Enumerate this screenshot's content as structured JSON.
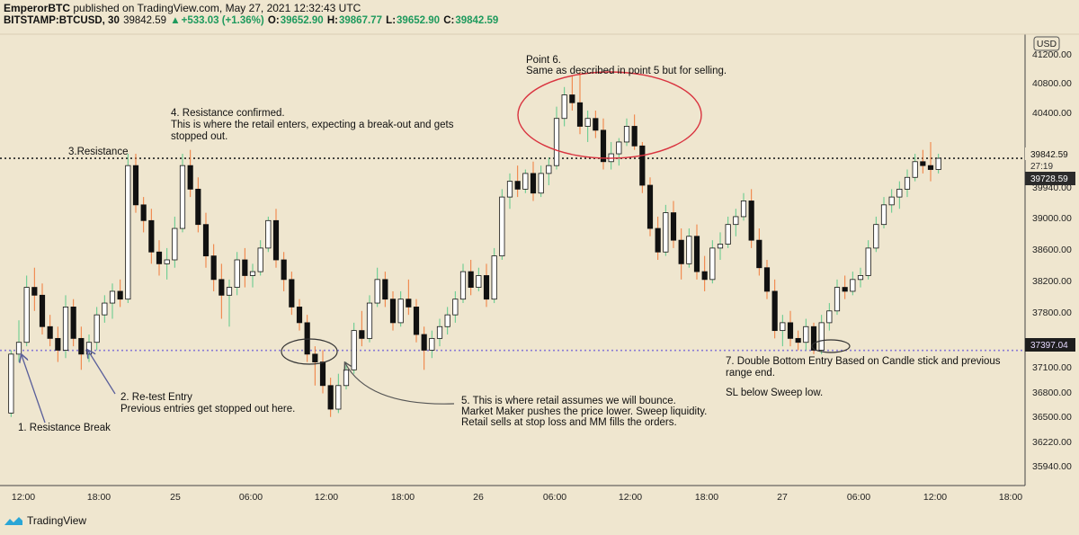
{
  "header": {
    "author": "EmperorBTC",
    "published_text": " published on TradingView.com, May 27, 2021 12:32:43 UTC",
    "symbol": "BITSTAMP:BTCUSD, 30",
    "last": "39842.59",
    "change": "+533.03 (+1.36%)",
    "o_label": "O:",
    "o_value": "39652.90",
    "h_label": "H:",
    "h_value": "39867.77",
    "l_label": "L:",
    "l_value": "39652.90",
    "c_label": "C:",
    "c_value": "39842.59"
  },
  "footer": {
    "brand": "TradingView"
  },
  "price_axis": {
    "currency": "USD",
    "ticks": [
      "41200.00",
      "40800.00",
      "40400.00",
      "39940.00",
      "39000.00",
      "38600.00",
      "38200.00",
      "37800.00",
      "37100.00",
      "36800.00",
      "36500.00",
      "36220.00",
      "35940.00"
    ],
    "last_price_tag": "39842.59",
    "countdown": "27:19",
    "mid_tag": "39728.59",
    "support_tag": "37397.04"
  },
  "time_axis": {
    "ticks": [
      "12:00",
      "18:00",
      "25",
      "06:00",
      "12:00",
      "18:00",
      "26",
      "06:00",
      "12:00",
      "18:00",
      "27",
      "06:00",
      "12:00",
      "18:00"
    ]
  },
  "annotations": {
    "a1": "1. Resistance Break",
    "a2_line1": "2. Re-test Entry",
    "a2_line2": "Previous entries get stopped out here.",
    "a3": "3.Resistance",
    "a4_line1": "4. Resistance confirmed.",
    "a4_line2": "This is where the retail enters, expecting a break-out and gets",
    "a4_line3": "stopped out.",
    "a5_line1": "5. This is where retail assumes we will  bounce.",
    "a5_line2": "Market Maker pushes the price lower. Sweep liquidity.",
    "a5_line3": "Retail sells at stop loss and MM fills the orders.",
    "a6_line1": "Point 6.",
    "a6_line2": "Same as described in  point 5 but for selling.",
    "a7_line1": "7. Double Bottom  Entry Based on Candle stick and previous",
    "a7_line2": "range end.",
    "a7_line3": "SL below Sweep low."
  },
  "colors": {
    "background": "#efe6cf",
    "bull_candle_fill": "#ffffff",
    "bear_candle_fill": "#111111",
    "wick_up": "#5cc98a",
    "wick_down": "#f07a3a",
    "resistance_line": "#222222",
    "support_line": "#8a7bd6",
    "ellipse_red": "#d9333f",
    "ellipse_dark": "#333333",
    "arrow": "#5a5f9a",
    "last_price_tag": "#111111",
    "mid_tag": "#2b2b2b"
  },
  "chart_data": {
    "type": "candlestick",
    "symbol": "BITSTAMP:BTCUSD",
    "interval": "30",
    "ylim": [
      35700,
      41400
    ],
    "resistance_level": 39842.59,
    "support_level": 37397.04,
    "candles": [
      {
        "o": 36600,
        "h": 37400,
        "l": 36550,
        "c": 37350
      },
      {
        "o": 37350,
        "h": 37780,
        "l": 37250,
        "c": 37500
      },
      {
        "o": 37500,
        "h": 38350,
        "l": 37450,
        "c": 38200
      },
      {
        "o": 38200,
        "h": 38450,
        "l": 37900,
        "c": 38100
      },
      {
        "o": 38100,
        "h": 38250,
        "l": 37600,
        "c": 37700
      },
      {
        "o": 37700,
        "h": 37850,
        "l": 37450,
        "c": 37550
      },
      {
        "o": 37550,
        "h": 37700,
        "l": 37250,
        "c": 37400
      },
      {
        "o": 37400,
        "h": 38100,
        "l": 37300,
        "c": 37950
      },
      {
        "o": 37950,
        "h": 38050,
        "l": 37450,
        "c": 37550
      },
      {
        "o": 37550,
        "h": 37700,
        "l": 37150,
        "c": 37350
      },
      {
        "o": 37350,
        "h": 37600,
        "l": 37250,
        "c": 37500
      },
      {
        "o": 37500,
        "h": 37950,
        "l": 37400,
        "c": 37850
      },
      {
        "o": 37850,
        "h": 38100,
        "l": 37750,
        "c": 38000
      },
      {
        "o": 38000,
        "h": 38250,
        "l": 37800,
        "c": 38150
      },
      {
        "o": 38150,
        "h": 38300,
        "l": 37950,
        "c": 38050
      },
      {
        "o": 38050,
        "h": 39900,
        "l": 38000,
        "c": 39750
      },
      {
        "o": 39750,
        "h": 39900,
        "l": 39150,
        "c": 39250
      },
      {
        "o": 39250,
        "h": 39350,
        "l": 38900,
        "c": 39050
      },
      {
        "o": 39050,
        "h": 39200,
        "l": 38500,
        "c": 38650
      },
      {
        "o": 38650,
        "h": 38800,
        "l": 38350,
        "c": 38500
      },
      {
        "o": 38500,
        "h": 38700,
        "l": 38300,
        "c": 38550
      },
      {
        "o": 38550,
        "h": 39100,
        "l": 38450,
        "c": 38950
      },
      {
        "o": 38950,
        "h": 39900,
        "l": 38900,
        "c": 39750
      },
      {
        "o": 39750,
        "h": 39950,
        "l": 39350,
        "c": 39450
      },
      {
        "o": 39450,
        "h": 39600,
        "l": 38900,
        "c": 39000
      },
      {
        "o": 39000,
        "h": 39150,
        "l": 38450,
        "c": 38600
      },
      {
        "o": 38600,
        "h": 38750,
        "l": 38150,
        "c": 38300
      },
      {
        "o": 38300,
        "h": 38500,
        "l": 37800,
        "c": 38100
      },
      {
        "o": 38100,
        "h": 38300,
        "l": 37700,
        "c": 38200
      },
      {
        "o": 38200,
        "h": 38650,
        "l": 38100,
        "c": 38550
      },
      {
        "o": 38550,
        "h": 38700,
        "l": 38200,
        "c": 38350
      },
      {
        "o": 38350,
        "h": 38500,
        "l": 38200,
        "c": 38400
      },
      {
        "o": 38400,
        "h": 38800,
        "l": 38350,
        "c": 38700
      },
      {
        "o": 38700,
        "h": 39100,
        "l": 38650,
        "c": 39050
      },
      {
        "o": 39050,
        "h": 39200,
        "l": 38450,
        "c": 38550
      },
      {
        "o": 38550,
        "h": 38650,
        "l": 38150,
        "c": 38300
      },
      {
        "o": 38300,
        "h": 38400,
        "l": 37850,
        "c": 37950
      },
      {
        "o": 37950,
        "h": 38050,
        "l": 37650,
        "c": 37750
      },
      {
        "o": 37750,
        "h": 37850,
        "l": 37250,
        "c": 37350
      },
      {
        "o": 37350,
        "h": 37450,
        "l": 36950,
        "c": 37250
      },
      {
        "o": 37250,
        "h": 37400,
        "l": 36850,
        "c": 36950
      },
      {
        "o": 36950,
        "h": 37050,
        "l": 36550,
        "c": 36650
      },
      {
        "o": 36650,
        "h": 37100,
        "l": 36600,
        "c": 36950
      },
      {
        "o": 36950,
        "h": 37250,
        "l": 36900,
        "c": 37150
      },
      {
        "o": 37150,
        "h": 37750,
        "l": 37100,
        "c": 37650
      },
      {
        "o": 37650,
        "h": 37900,
        "l": 37450,
        "c": 37550
      },
      {
        "o": 37550,
        "h": 38100,
        "l": 37500,
        "c": 38000
      },
      {
        "o": 38000,
        "h": 38450,
        "l": 37950,
        "c": 38300
      },
      {
        "o": 38300,
        "h": 38400,
        "l": 37950,
        "c": 38050
      },
      {
        "o": 38050,
        "h": 38150,
        "l": 37650,
        "c": 37750
      },
      {
        "o": 37750,
        "h": 38150,
        "l": 37700,
        "c": 38050
      },
      {
        "o": 38050,
        "h": 38300,
        "l": 37850,
        "c": 37950
      },
      {
        "o": 37950,
        "h": 38050,
        "l": 37500,
        "c": 37600
      },
      {
        "o": 37600,
        "h": 37700,
        "l": 37150,
        "c": 37400
      },
      {
        "o": 37400,
        "h": 37650,
        "l": 37300,
        "c": 37550
      },
      {
        "o": 37550,
        "h": 37800,
        "l": 37450,
        "c": 37700
      },
      {
        "o": 37700,
        "h": 37950,
        "l": 37600,
        "c": 37850
      },
      {
        "o": 37850,
        "h": 38150,
        "l": 37750,
        "c": 38050
      },
      {
        "o": 38050,
        "h": 38500,
        "l": 38000,
        "c": 38400
      },
      {
        "o": 38400,
        "h": 38550,
        "l": 38100,
        "c": 38200
      },
      {
        "o": 38200,
        "h": 38450,
        "l": 38150,
        "c": 38350
      },
      {
        "o": 38350,
        "h": 38500,
        "l": 37950,
        "c": 38050
      },
      {
        "o": 38050,
        "h": 38700,
        "l": 38000,
        "c": 38600
      },
      {
        "o": 38600,
        "h": 39450,
        "l": 38550,
        "c": 39350
      },
      {
        "o": 39350,
        "h": 39650,
        "l": 39200,
        "c": 39550
      },
      {
        "o": 39550,
        "h": 39750,
        "l": 39350,
        "c": 39450
      },
      {
        "o": 39450,
        "h": 39700,
        "l": 39400,
        "c": 39650
      },
      {
        "o": 39650,
        "h": 39800,
        "l": 39300,
        "c": 39400
      },
      {
        "o": 39400,
        "h": 39750,
        "l": 39350,
        "c": 39650
      },
      {
        "o": 39650,
        "h": 39850,
        "l": 39500,
        "c": 39750
      },
      {
        "o": 39750,
        "h": 40500,
        "l": 39700,
        "c": 40350
      },
      {
        "o": 40350,
        "h": 40750,
        "l": 40250,
        "c": 40650
      },
      {
        "o": 40650,
        "h": 40900,
        "l": 40450,
        "c": 40550
      },
      {
        "o": 40550,
        "h": 40950,
        "l": 40150,
        "c": 40250
      },
      {
        "o": 40250,
        "h": 40450,
        "l": 40050,
        "c": 40350
      },
      {
        "o": 40350,
        "h": 40450,
        "l": 40100,
        "c": 40200
      },
      {
        "o": 40200,
        "h": 40350,
        "l": 39700,
        "c": 39800
      },
      {
        "o": 39800,
        "h": 40050,
        "l": 39700,
        "c": 39900
      },
      {
        "o": 39900,
        "h": 40100,
        "l": 39750,
        "c": 40050
      },
      {
        "o": 40050,
        "h": 40350,
        "l": 40000,
        "c": 40250
      },
      {
        "o": 40250,
        "h": 40400,
        "l": 39950,
        "c": 40000
      },
      {
        "o": 40000,
        "h": 40050,
        "l": 39400,
        "c": 39500
      },
      {
        "o": 39500,
        "h": 39600,
        "l": 38850,
        "c": 38950
      },
      {
        "o": 38950,
        "h": 39100,
        "l": 38550,
        "c": 38650
      },
      {
        "o": 38650,
        "h": 39250,
        "l": 38600,
        "c": 39150
      },
      {
        "o": 39150,
        "h": 39300,
        "l": 38700,
        "c": 38800
      },
      {
        "o": 38800,
        "h": 38950,
        "l": 38300,
        "c": 38500
      },
      {
        "o": 38500,
        "h": 38950,
        "l": 38450,
        "c": 38850
      },
      {
        "o": 38850,
        "h": 39000,
        "l": 38300,
        "c": 38400
      },
      {
        "o": 38400,
        "h": 38600,
        "l": 38150,
        "c": 38300
      },
      {
        "o": 38300,
        "h": 38800,
        "l": 38250,
        "c": 38700
      },
      {
        "o": 38700,
        "h": 38900,
        "l": 38550,
        "c": 38750
      },
      {
        "o": 38750,
        "h": 39100,
        "l": 38700,
        "c": 39000
      },
      {
        "o": 39000,
        "h": 39200,
        "l": 38850,
        "c": 39100
      },
      {
        "o": 39100,
        "h": 39400,
        "l": 39050,
        "c": 39300
      },
      {
        "o": 39300,
        "h": 39450,
        "l": 38700,
        "c": 38800
      },
      {
        "o": 38800,
        "h": 38950,
        "l": 38350,
        "c": 38450
      },
      {
        "o": 38450,
        "h": 38550,
        "l": 38050,
        "c": 38150
      },
      {
        "o": 38150,
        "h": 38300,
        "l": 37550,
        "c": 37650
      },
      {
        "o": 37650,
        "h": 37850,
        "l": 37450,
        "c": 37750
      },
      {
        "o": 37750,
        "h": 37900,
        "l": 37450,
        "c": 37550
      },
      {
        "o": 37550,
        "h": 37650,
        "l": 37400,
        "c": 37500
      },
      {
        "o": 37500,
        "h": 37800,
        "l": 37400,
        "c": 37700
      },
      {
        "o": 37700,
        "h": 37750,
        "l": 37350,
        "c": 37400
      },
      {
        "o": 37400,
        "h": 37850,
        "l": 37350,
        "c": 37750
      },
      {
        "o": 37750,
        "h": 38000,
        "l": 37650,
        "c": 37900
      },
      {
        "o": 37900,
        "h": 38300,
        "l": 37850,
        "c": 38200
      },
      {
        "o": 38200,
        "h": 38350,
        "l": 38050,
        "c": 38150
      },
      {
        "o": 38150,
        "h": 38400,
        "l": 38100,
        "c": 38300
      },
      {
        "o": 38300,
        "h": 38450,
        "l": 38200,
        "c": 38350
      },
      {
        "o": 38350,
        "h": 38800,
        "l": 38300,
        "c": 38700
      },
      {
        "o": 38700,
        "h": 39100,
        "l": 38650,
        "c": 39000
      },
      {
        "o": 39000,
        "h": 39350,
        "l": 38950,
        "c": 39250
      },
      {
        "o": 39250,
        "h": 39450,
        "l": 39150,
        "c": 39350
      },
      {
        "o": 39350,
        "h": 39550,
        "l": 39200,
        "c": 39450
      },
      {
        "o": 39450,
        "h": 39700,
        "l": 39350,
        "c": 39600
      },
      {
        "o": 39600,
        "h": 39900,
        "l": 39550,
        "c": 39800
      },
      {
        "o": 39800,
        "h": 39950,
        "l": 39650,
        "c": 39750
      },
      {
        "o": 39750,
        "h": 40050,
        "l": 39550,
        "c": 39700
      },
      {
        "o": 39700,
        "h": 39900,
        "l": 39650,
        "c": 39842.59
      }
    ]
  }
}
